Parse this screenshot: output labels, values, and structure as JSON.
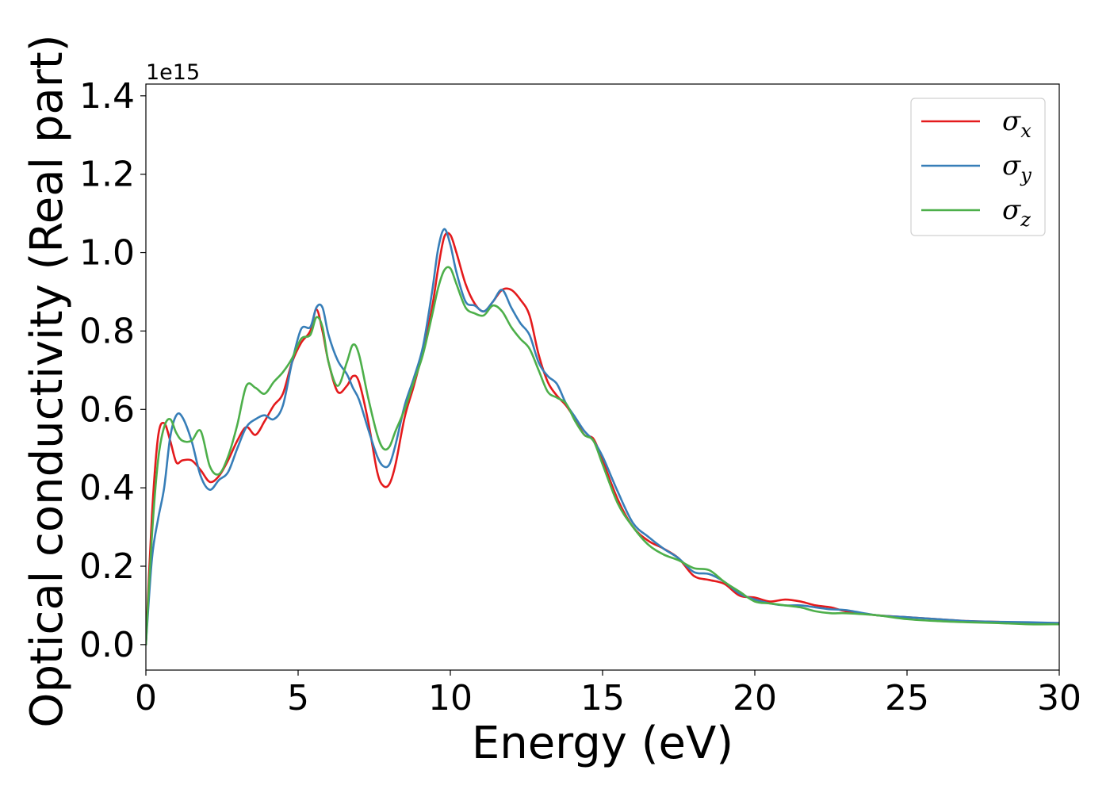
{
  "chart_data": {
    "type": "line",
    "title": "",
    "xlabel": "Energy (eV)",
    "ylabel": "Optical conductivity (Real part)",
    "y_offset_text": "1e15",
    "y_multiplier": 1000000000000000.0,
    "xlim": [
      0,
      30
    ],
    "ylim": [
      -0.065,
      1.43
    ],
    "xticks": [
      0,
      5,
      10,
      15,
      20,
      25,
      30
    ],
    "xtick_labels": [
      "0",
      "5",
      "10",
      "15",
      "20",
      "25",
      "30"
    ],
    "yticks": [
      0.0,
      0.2,
      0.4,
      0.6,
      0.8,
      1.0,
      1.2,
      1.4
    ],
    "ytick_labels": [
      "0.0",
      "0.2",
      "0.4",
      "0.6",
      "0.8",
      "1.0",
      "1.2",
      "1.4"
    ],
    "grid": false,
    "legend_position": "top-right",
    "series": [
      {
        "name": "σx",
        "legend_base": "σ",
        "legend_sub": "x",
        "color": "#e41a1c",
        "x": [
          0,
          0.2,
          0.4,
          0.6,
          0.8,
          1.0,
          1.2,
          1.5,
          1.8,
          2.1,
          2.4,
          2.7,
          3.0,
          3.3,
          3.6,
          3.9,
          4.2,
          4.5,
          4.8,
          5.1,
          5.4,
          5.6,
          5.8,
          6.0,
          6.3,
          6.6,
          6.8,
          7.0,
          7.3,
          7.6,
          7.8,
          8.0,
          8.2,
          8.5,
          8.8,
          9.1,
          9.4,
          9.6,
          9.8,
          10.0,
          10.2,
          10.5,
          10.8,
          11.1,
          11.4,
          11.7,
          12.0,
          12.3,
          12.6,
          12.9,
          13.2,
          13.5,
          13.8,
          14.1,
          14.4,
          14.7,
          15.0,
          15.5,
          16.0,
          16.5,
          17.0,
          17.5,
          18.0,
          18.5,
          19.0,
          19.5,
          20.0,
          20.5,
          21.0,
          21.5,
          22.0,
          22.5,
          23.0,
          24.0,
          25.0,
          26.0,
          27.0,
          28.0,
          29.0,
          30.0
        ],
        "y": [
          0.0,
          0.33,
          0.53,
          0.565,
          0.52,
          0.465,
          0.47,
          0.47,
          0.445,
          0.415,
          0.43,
          0.47,
          0.52,
          0.555,
          0.535,
          0.57,
          0.61,
          0.64,
          0.72,
          0.77,
          0.8,
          0.855,
          0.8,
          0.72,
          0.645,
          0.66,
          0.685,
          0.67,
          0.57,
          0.44,
          0.405,
          0.41,
          0.46,
          0.58,
          0.66,
          0.75,
          0.86,
          0.96,
          1.04,
          1.045,
          1.0,
          0.92,
          0.87,
          0.85,
          0.875,
          0.905,
          0.905,
          0.88,
          0.84,
          0.74,
          0.67,
          0.635,
          0.61,
          0.575,
          0.535,
          0.525,
          0.47,
          0.37,
          0.3,
          0.265,
          0.245,
          0.22,
          0.175,
          0.165,
          0.155,
          0.125,
          0.12,
          0.11,
          0.115,
          0.11,
          0.1,
          0.095,
          0.085,
          0.075,
          0.07,
          0.065,
          0.06,
          0.058,
          0.055,
          0.055
        ]
      },
      {
        "name": "σy",
        "legend_base": "σ",
        "legend_sub": "y",
        "color": "#377eb8",
        "x": [
          0,
          0.2,
          0.4,
          0.6,
          0.8,
          1.0,
          1.2,
          1.5,
          1.8,
          2.1,
          2.4,
          2.7,
          3.0,
          3.3,
          3.6,
          3.9,
          4.2,
          4.5,
          4.8,
          5.1,
          5.4,
          5.6,
          5.8,
          6.0,
          6.3,
          6.6,
          6.8,
          7.0,
          7.3,
          7.6,
          7.8,
          8.0,
          8.2,
          8.5,
          8.8,
          9.1,
          9.4,
          9.6,
          9.8,
          10.0,
          10.2,
          10.5,
          10.8,
          11.1,
          11.4,
          11.7,
          12.0,
          12.3,
          12.6,
          12.9,
          13.2,
          13.5,
          13.8,
          14.1,
          14.4,
          14.7,
          15.0,
          15.5,
          16.0,
          16.5,
          17.0,
          17.5,
          18.0,
          18.5,
          19.0,
          19.5,
          20.0,
          20.5,
          21.0,
          21.5,
          22.0,
          22.5,
          23.0,
          24.0,
          25.0,
          26.0,
          27.0,
          28.0,
          29.0,
          30.0
        ],
        "y": [
          0.0,
          0.22,
          0.32,
          0.4,
          0.53,
          0.585,
          0.58,
          0.52,
          0.43,
          0.395,
          0.42,
          0.44,
          0.5,
          0.555,
          0.575,
          0.585,
          0.575,
          0.61,
          0.72,
          0.805,
          0.81,
          0.86,
          0.86,
          0.79,
          0.725,
          0.69,
          0.655,
          0.625,
          0.55,
          0.48,
          0.455,
          0.46,
          0.51,
          0.61,
          0.68,
          0.76,
          0.9,
          1.01,
          1.06,
          1.02,
          0.95,
          0.875,
          0.865,
          0.85,
          0.875,
          0.905,
          0.86,
          0.82,
          0.79,
          0.72,
          0.685,
          0.665,
          0.615,
          0.58,
          0.545,
          0.52,
          0.48,
          0.39,
          0.31,
          0.275,
          0.245,
          0.22,
          0.185,
          0.18,
          0.16,
          0.13,
          0.115,
          0.105,
          0.1,
          0.1,
          0.095,
          0.09,
          0.088,
          0.075,
          0.07,
          0.065,
          0.06,
          0.058,
          0.057,
          0.055
        ]
      },
      {
        "name": "σz",
        "legend_base": "σ",
        "legend_sub": "z",
        "color": "#4daf4a",
        "x": [
          0,
          0.2,
          0.4,
          0.6,
          0.8,
          1.0,
          1.2,
          1.5,
          1.8,
          2.1,
          2.4,
          2.7,
          3.0,
          3.3,
          3.6,
          3.9,
          4.2,
          4.5,
          4.8,
          5.1,
          5.4,
          5.6,
          5.8,
          6.0,
          6.3,
          6.6,
          6.8,
          7.0,
          7.3,
          7.6,
          7.8,
          8.0,
          8.2,
          8.5,
          8.8,
          9.1,
          9.4,
          9.6,
          9.8,
          10.0,
          10.2,
          10.5,
          10.8,
          11.1,
          11.4,
          11.7,
          12.0,
          12.3,
          12.6,
          12.9,
          13.2,
          13.5,
          13.8,
          14.1,
          14.4,
          14.7,
          15.0,
          15.5,
          16.0,
          16.5,
          17.0,
          17.5,
          18.0,
          18.5,
          19.0,
          19.5,
          20.0,
          20.5,
          21.0,
          21.5,
          22.0,
          22.5,
          23.0,
          24.0,
          25.0,
          26.0,
          27.0,
          28.0,
          29.0,
          30.0
        ],
        "y": [
          0.0,
          0.28,
          0.47,
          0.555,
          0.575,
          0.54,
          0.52,
          0.52,
          0.545,
          0.455,
          0.435,
          0.48,
          0.56,
          0.66,
          0.655,
          0.64,
          0.67,
          0.695,
          0.73,
          0.78,
          0.79,
          0.835,
          0.81,
          0.72,
          0.66,
          0.72,
          0.765,
          0.74,
          0.63,
          0.535,
          0.5,
          0.505,
          0.545,
          0.6,
          0.67,
          0.74,
          0.84,
          0.91,
          0.955,
          0.96,
          0.92,
          0.86,
          0.845,
          0.84,
          0.865,
          0.85,
          0.81,
          0.78,
          0.755,
          0.7,
          0.645,
          0.63,
          0.615,
          0.57,
          0.535,
          0.52,
          0.46,
          0.36,
          0.3,
          0.255,
          0.23,
          0.215,
          0.195,
          0.19,
          0.16,
          0.135,
          0.11,
          0.105,
          0.1,
          0.095,
          0.085,
          0.08,
          0.08,
          0.075,
          0.065,
          0.06,
          0.057,
          0.055,
          0.052,
          0.052
        ]
      }
    ]
  }
}
